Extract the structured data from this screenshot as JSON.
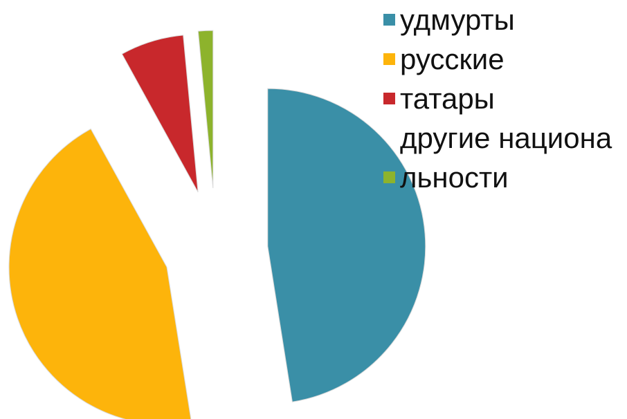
{
  "chart_data": {
    "type": "pie",
    "title": "",
    "series": [
      {
        "values": [
          47.5,
          44.5,
          6.5,
          1.5
        ]
      }
    ],
    "categories": [
      "удмурты",
      "русские",
      "татары",
      "другие национальности"
    ],
    "colors": [
      "#3A8FA7",
      "#FDB40B",
      "#C8282C",
      "#8DB32C"
    ],
    "labels_as_shown": [
      "удмурты",
      "русские",
      "татары",
      "другие национальнос ти"
    ],
    "exploded": true,
    "legend_position": "right"
  }
}
